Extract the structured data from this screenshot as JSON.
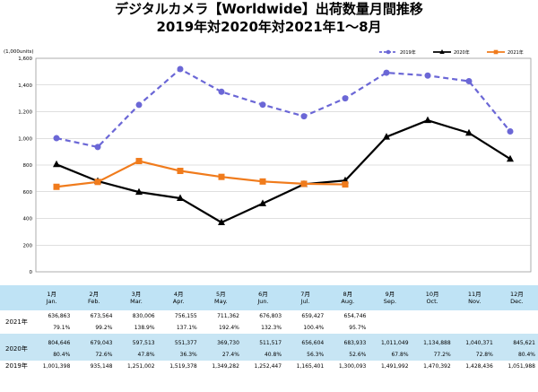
{
  "title_line1": "デジタルカメラ【Worldwide】出荷数量月間推移",
  "title_line2": "2019年対2020年対2021年1～8月",
  "colors": {
    "s2019": "#6b67d6",
    "s2020": "#000000",
    "s2021": "#f07b1c",
    "table_header": "#bfe3f5",
    "table_band": "#c7e5f4",
    "grid": "#bfbfbf"
  },
  "chart_data": {
    "type": "line",
    "unit_label": "(1,000units)",
    "ylim": [
      0,
      1600
    ],
    "yticks": [
      "1,600",
      "1,400",
      "1,200",
      "1,000",
      "800",
      "600",
      "400",
      "200",
      "0"
    ],
    "categories": [
      "1月",
      "2月",
      "3月",
      "4月",
      "5月",
      "6月",
      "7月",
      "8月",
      "9月",
      "10月",
      "11月",
      "12月"
    ],
    "categories_en": [
      "Jan.",
      "Feb.",
      "Mar.",
      "Apr.",
      "May.",
      "Jun.",
      "Jul.",
      "Aug.",
      "Sep.",
      "Oct.",
      "Nov.",
      "Dec."
    ],
    "grid": true,
    "legend_position": "top-right",
    "series": [
      {
        "name": "2019年",
        "style": "dashed",
        "marker": "circle",
        "values": [
          1001.398,
          935.148,
          1251.002,
          1519.378,
          1349.282,
          1252.447,
          1165.401,
          1300.093,
          1491.992,
          1470.392,
          1428.436,
          1051.988
        ]
      },
      {
        "name": "2020年",
        "style": "solid",
        "marker": "triangle",
        "values": [
          804.646,
          679.043,
          597.513,
          551.377,
          369.73,
          511.517,
          656.604,
          683.933,
          1011.049,
          1134.888,
          1040.371,
          845.621
        ]
      },
      {
        "name": "2021年",
        "style": "solid",
        "marker": "square",
        "values": [
          636.863,
          673.564,
          830.006,
          756.155,
          711.362,
          676.803,
          659.427,
          654.746,
          null,
          null,
          null,
          null
        ]
      }
    ]
  },
  "table": {
    "row_labels": {
      "y2021": "2021年",
      "y2020": "2020年",
      "y2019": "2019年"
    },
    "y2021": {
      "values": [
        "636,863",
        "673,564",
        "830,006",
        "756,155",
        "711,362",
        "676,803",
        "659,427",
        "654,746",
        "",
        "",
        "",
        ""
      ],
      "pct": [
        "79.1%",
        "99.2%",
        "138.9%",
        "137.1%",
        "192.4%",
        "132.3%",
        "100.4%",
        "95.7%",
        "",
        "",
        "",
        ""
      ]
    },
    "y2020": {
      "values": [
        "804,646",
        "679,043",
        "597,513",
        "551,377",
        "369,730",
        "511,517",
        "656,604",
        "683,933",
        "1,011,049",
        "1,134,888",
        "1,040,371",
        "845,621"
      ],
      "pct": [
        "80.4%",
        "72.6%",
        "47.8%",
        "36.3%",
        "27.4%",
        "40.8%",
        "56.3%",
        "52.6%",
        "67.8%",
        "77.2%",
        "72.8%",
        "80.4%"
      ]
    },
    "y2019": {
      "values": [
        "1,001,398",
        "935,148",
        "1,251,002",
        "1,519,378",
        "1,349,282",
        "1,252,447",
        "1,165,401",
        "1,300,093",
        "1,491,992",
        "1,470,392",
        "1,428,436",
        "1,051,988"
      ]
    }
  }
}
